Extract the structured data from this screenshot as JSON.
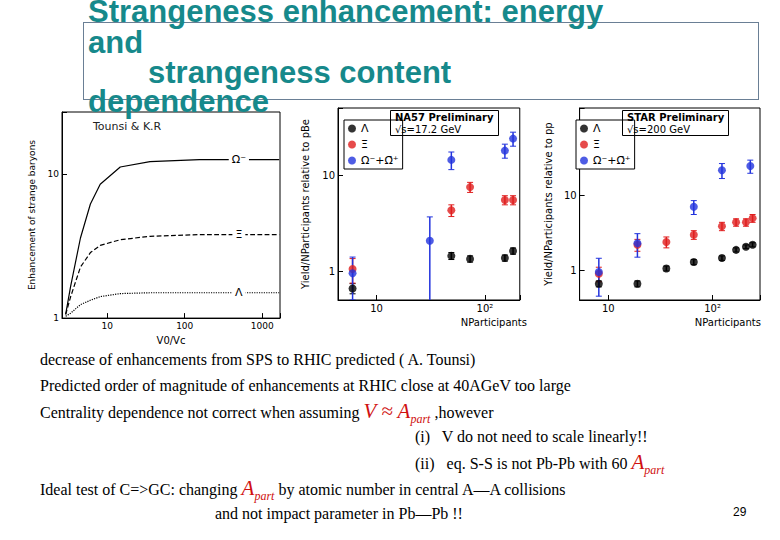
{
  "title_lines": [
    "Strangeness enhancement: energy",
    "and",
    "strangeness content",
    "dependence"
  ],
  "chart_data": [
    {
      "type": "line",
      "caption": "Tounsi & K.R",
      "x_label": "V0/Vc",
      "y_label": "Enhancement of strange baryons",
      "log": true,
      "xlim": [
        2.6,
        1700
      ],
      "xticks": [
        10,
        100,
        1000
      ],
      "ylim": [
        1,
        27
      ],
      "yticks": [
        1,
        10
      ],
      "x": [
        2.9,
        3.35,
        4.5,
        6.05,
        8.1,
        14.7,
        35.6,
        155,
        500,
        1660
      ],
      "series": [
        {
          "name": "Ω⁻",
          "color": "#000000",
          "line_style": "solid",
          "values": [
            1.06,
            1.65,
            3.6,
            6.2,
            8.5,
            11.2,
            12.2,
            12.6,
            12.6,
            12.6
          ]
        },
        {
          "name": "Ξ",
          "color": "#000000",
          "line_style": "dashed",
          "values": [
            1.06,
            1.4,
            2.26,
            2.85,
            3.2,
            3.5,
            3.7,
            3.8,
            3.8,
            3.8
          ]
        },
        {
          "name": "Λ",
          "color": "#000000",
          "line_style": "dotted",
          "values": [
            1.03,
            1.08,
            1.24,
            1.33,
            1.41,
            1.48,
            1.5,
            1.5,
            1.5,
            1.5
          ]
        }
      ]
    },
    {
      "type": "scatter",
      "title": "NA57 Preliminary",
      "subtitle": "√s=17.2 GeV",
      "x_label": "NParticipants",
      "y_label": "Yield/NParticipants relative to pBe",
      "log": true,
      "xlim": [
        4.4,
        210
      ],
      "xticks": [
        10,
        {
          "value": 100,
          "label": "10²"
        }
      ],
      "ylim": [
        0.5,
        50
      ],
      "yticks": [
        1,
        10
      ],
      "legend": "top-left",
      "marker": "circle",
      "series": [
        {
          "name": "Λ",
          "color": "#000000",
          "x": [
            6.0,
            49,
            73,
            153,
            182
          ],
          "values": [
            0.66,
            1.44,
            1.34,
            1.37,
            1.62
          ],
          "errors": [
            0.08,
            0.12,
            0.1,
            0.1,
            0.12
          ]
        },
        {
          "name": "Ξ",
          "color": "#e01e1e",
          "x": [
            6.0,
            49,
            73,
            153,
            182
          ],
          "values": [
            1.05,
            4.3,
            7.5,
            5.5,
            5.5
          ],
          "errors": [
            0.3,
            0.6,
            0.9,
            0.6,
            0.6
          ]
        },
        {
          "name": "Ω⁻+Ω̄⁺",
          "color": "#2233dd",
          "x": [
            6.0,
            31,
            49,
            153,
            182
          ],
          "values": [
            0.95,
            2.07,
            14.4,
            18,
            24
          ],
          "errors": [
            0.45,
            1.6,
            3,
            3,
            4
          ]
        }
      ]
    },
    {
      "type": "scatter",
      "title": "STAR Preliminary",
      "subtitle": "√s=200 GeV",
      "x_label": "NParticipants",
      "y_label": "Yield/NParticipants relative to pp",
      "log": true,
      "xlim": [
        5.3,
        285
      ],
      "xticks": [
        10,
        {
          "value": 100,
          "label": "10²"
        }
      ],
      "ylim": [
        0.4,
        150
      ],
      "yticks": [
        1,
        10
      ],
      "legend": "top-left",
      "marker": "circle",
      "series": [
        {
          "name": "Λ",
          "color": "#000000",
          "x": [
            8.1,
            19,
            36,
            66,
            123,
            168,
            209,
            242
          ],
          "values": [
            0.66,
            0.66,
            1.06,
            1.29,
            1.46,
            1.88,
            2.07,
            2.2
          ],
          "errors": [
            0.06,
            0.06,
            0.08,
            0.1,
            0.1,
            0.12,
            0.12,
            0.14
          ]
        },
        {
          "name": "Ξ",
          "color": "#e01e1e",
          "x": [
            8.1,
            19,
            36,
            66,
            123,
            168,
            209,
            242
          ],
          "values": [
            0.9,
            2.2,
            2.4,
            3.0,
            3.9,
            4.4,
            4.4,
            5.0
          ],
          "errors": [
            0.2,
            0.4,
            0.4,
            0.4,
            0.5,
            0.5,
            0.5,
            0.6
          ]
        },
        {
          "name": "Ω⁻+Ω̄⁺",
          "color": "#2233dd",
          "x": [
            8.1,
            19,
            66,
            123,
            230
          ],
          "values": [
            0.95,
            2.3,
            7.1,
            22,
            25
          ],
          "errors": [
            0.5,
            0.8,
            1.5,
            5,
            5
          ]
        }
      ]
    }
  ],
  "notes": [
    [
      {
        "text": "decrease of enhancements from SPS to RHIC predicted ( A. Tounsi)"
      }
    ],
    [
      {
        "text": "Predicted order of magnitude of enhancements at RHIC close at 40AGeV too large"
      }
    ],
    [
      {
        "text": "Centrality dependence not correct when assuming "
      },
      {
        "text": "V ≈ ",
        "math": true
      },
      {
        "text": "A",
        "sub": "part",
        "math": true
      },
      {
        "text": " ,however"
      }
    ],
    [
      {
        "text": "(i)   V do not need to scale linearly!!"
      }
    ],
    [
      {
        "text": "(ii)   eq. S-S is not Pb-Pb with 60 "
      },
      {
        "text": "A",
        "sub": "part",
        "math": true
      }
    ],
    [
      {
        "text": "Ideal test of C=>GC: changing "
      },
      {
        "text": "A",
        "sub": "part",
        "math": true
      },
      {
        "text": " by atomic number in central A—A collisions"
      }
    ],
    [
      {
        "text": "and not impact parameter in Pb—Pb !!"
      }
    ]
  ],
  "page_number": 29
}
